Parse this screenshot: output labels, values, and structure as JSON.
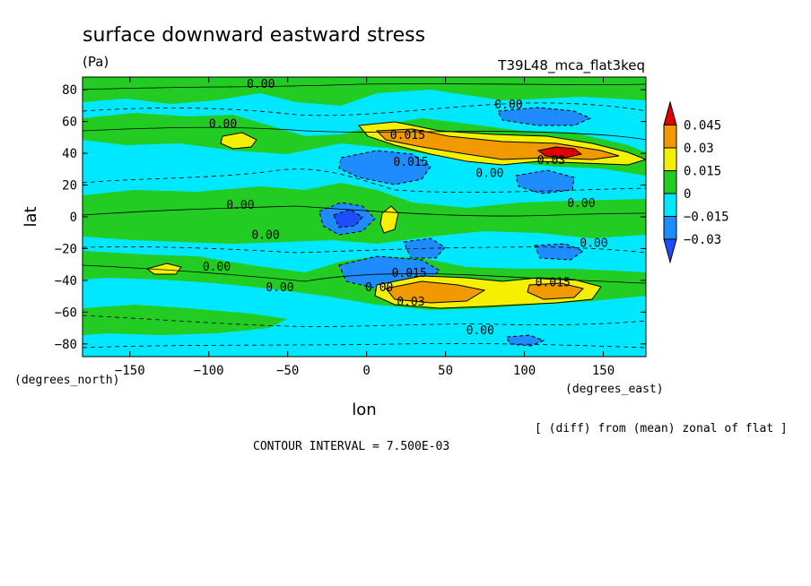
{
  "chart_data": {
    "type": "contour",
    "title": "surface downward eastward stress",
    "units": "(Pa)",
    "run_label": "T39L48_mca_flat3keq",
    "xlabel": "lon",
    "ylabel": "lat",
    "x_units_label": "(degrees_east)",
    "y_units_label": "(degrees_north)",
    "x_ticks": [
      -150,
      -100,
      -50,
      0,
      50,
      100,
      150
    ],
    "y_ticks": [
      80,
      60,
      40,
      20,
      0,
      -20,
      -40,
      -60,
      -80
    ],
    "xlim": [
      -180,
      177
    ],
    "ylim": [
      -88,
      88
    ],
    "contour_interval_text": "CONTOUR INTERVAL = 7.500E-03",
    "footnote": "[ (diff) from (mean) zonal of flat ]",
    "colorbar": {
      "levels": [
        0.045,
        0.03,
        0.015,
        0,
        -0.015,
        -0.03
      ],
      "labels": [
        "0.045",
        "0.03",
        "0.015",
        "0",
        "−0.015",
        "−0.03"
      ],
      "colors": [
        "#e00000",
        "#f09a00",
        "#f5f000",
        "#22cc22",
        "#00e8ff",
        "#1e8cff",
        "#1e4cff"
      ]
    },
    "contour_labels": [
      {
        "text": "0.00",
        "lon": -67,
        "lat": 84
      },
      {
        "text": "0.00",
        "lon": -91,
        "lat": 59
      },
      {
        "text": "0.00",
        "lon": 90,
        "lat": 71
      },
      {
        "text": "0.015",
        "lon": 26,
        "lat": 52
      },
      {
        "text": "0.015",
        "lon": 28,
        "lat": 35
      },
      {
        "text": "0.03",
        "lon": 117,
        "lat": 36
      },
      {
        "text": "0.00",
        "lon": 78,
        "lat": 28
      },
      {
        "text": "0.00",
        "lon": -80,
        "lat": 8
      },
      {
        "text": "0.00",
        "lon": 136,
        "lat": 9
      },
      {
        "text": "0.00",
        "lon": -64,
        "lat": -11
      },
      {
        "text": "0.00",
        "lon": 144,
        "lat": -16
      },
      {
        "text": "0.00",
        "lon": -95,
        "lat": -31
      },
      {
        "text": "0.00",
        "lon": -55,
        "lat": -44
      },
      {
        "text": "0.00",
        "lon": 8,
        "lat": -44
      },
      {
        "text": "0.015",
        "lon": 27,
        "lat": -35
      },
      {
        "text": "0.015",
        "lon": 118,
        "lat": -41
      },
      {
        "text": "0.03",
        "lon": 28,
        "lat": -53
      },
      {
        "text": "0.00",
        "lon": 72,
        "lat": -71
      }
    ]
  }
}
